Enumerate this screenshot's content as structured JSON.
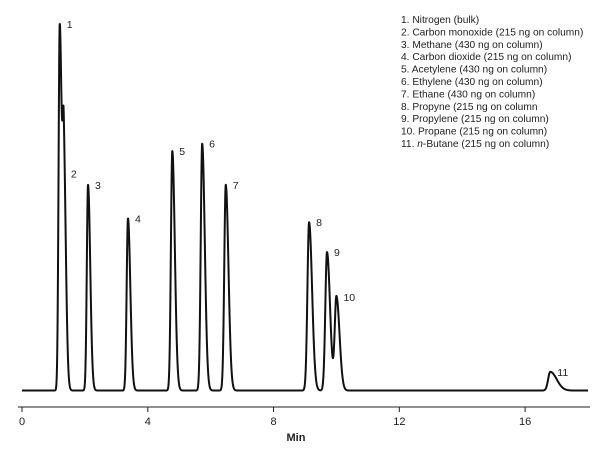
{
  "chart_data": {
    "type": "line",
    "title": "",
    "xlabel": "Min",
    "ylabel": "",
    "xlim": [
      0,
      18
    ],
    "ylim": [
      0,
      1
    ],
    "x_ticks": [
      0,
      4,
      8,
      12,
      16
    ],
    "grid": false,
    "legend_position": "top-right",
    "line_color": "#111111",
    "baseline": 0.02,
    "peaks": [
      {
        "number": "1",
        "name": "Nitrogen (bulk)",
        "rt": 1.2,
        "height": 1.0
      },
      {
        "number": "2",
        "name": "Carbon monoxide (215 ng on column)",
        "rt": 1.33,
        "height": 0.6
      },
      {
        "number": "3",
        "name": "Methane (430 ng on column)",
        "rt": 2.1,
        "height": 0.57
      },
      {
        "number": "4",
        "name": "Carbon dioxide (215 ng on column)",
        "rt": 3.37,
        "height": 0.48
      },
      {
        "number": "5",
        "name": "Acetylene (430 ng on column)",
        "rt": 4.78,
        "height": 0.66
      },
      {
        "number": "6",
        "name": "Ethylene (430 ng on column)",
        "rt": 5.73,
        "height": 0.68
      },
      {
        "number": "7",
        "name": "Ethane (430 ng on column)",
        "rt": 6.48,
        "height": 0.57
      },
      {
        "number": "8",
        "name": "Propyne (215 ng on column",
        "rt": 9.13,
        "height": 0.47
      },
      {
        "number": "9",
        "name": "Propylene (215 ng on column)",
        "rt": 9.7,
        "height": 0.39
      },
      {
        "number": "10",
        "name": "Propane (215 ng on column)",
        "rt": 10.0,
        "height": 0.27
      },
      {
        "number": "11",
        "name": "n-Butane (215 ng on column)",
        "rt": 16.8,
        "height": 0.07
      }
    ]
  }
}
